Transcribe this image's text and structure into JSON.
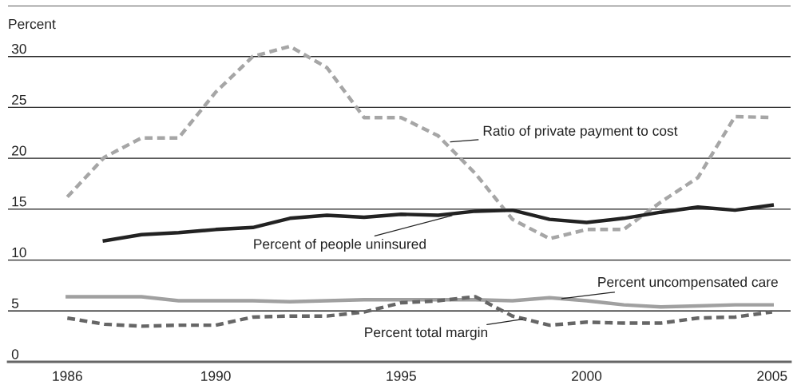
{
  "chart_data": {
    "type": "line",
    "ylabel": "Percent",
    "x": [
      1986,
      1987,
      1988,
      1989,
      1990,
      1991,
      1992,
      1993,
      1994,
      1995,
      1996,
      1997,
      1998,
      1999,
      2000,
      2001,
      2002,
      2003,
      2004,
      2005
    ],
    "xlim": [
      1984.4,
      2005.5
    ],
    "xticks": [
      1986,
      1990,
      1995,
      2000,
      2005
    ],
    "ylim": [
      0,
      35
    ],
    "yticks": [
      0,
      5,
      10,
      15,
      20,
      25,
      30,
      {
        "value": 35,
        "label": null
      }
    ],
    "grid": "y",
    "legend": false,
    "marker": "none",
    "series": [
      {
        "color": "#a6a6a6",
        "line_style": "dashed",
        "values": [
          16.2,
          20.1,
          22.0,
          22.0,
          26.5,
          30.0,
          31.0,
          28.9,
          24.0,
          24.0,
          22.2,
          18.5,
          14.0,
          12.1,
          13.0,
          13.0,
          15.7,
          18.1,
          24.1,
          24.0
        ]
      },
      {
        "color": "#222222",
        "line_style": "solid",
        "values": [
          null,
          11.9,
          12.5,
          12.7,
          13.0,
          13.2,
          14.1,
          14.4,
          14.2,
          14.5,
          14.4,
          14.8,
          14.9,
          14.0,
          13.7,
          14.1,
          14.7,
          15.2,
          14.9,
          15.4
        ]
      },
      {
        "color": "#a0a0a0",
        "line_style": "solid",
        "values": [
          6.4,
          6.4,
          6.4,
          6.0,
          6.0,
          6.0,
          5.9,
          6.0,
          6.1,
          6.1,
          6.1,
          6.1,
          6.0,
          6.3,
          6.0,
          5.6,
          5.4,
          5.5,
          5.6,
          5.6
        ]
      },
      {
        "color": "#666666",
        "line_style": "dashed",
        "values": [
          4.3,
          3.7,
          3.5,
          3.6,
          3.6,
          4.4,
          4.5,
          4.5,
          4.9,
          5.8,
          6.0,
          6.4,
          4.5,
          3.6,
          3.9,
          3.8,
          3.8,
          4.3,
          4.4,
          4.9
        ]
      }
    ],
    "annotations": [
      {
        "text": "Ratio of private payment to cost",
        "x": 1996.3,
        "y": 21.6
      },
      {
        "text": "Percent of people uninsured",
        "x": 1996.4,
        "y": 14.4
      },
      {
        "text": "Percent uncompensated care",
        "x": 1999.3,
        "y": 6.2
      },
      {
        "text": "Percent total margin",
        "x": 1998.3,
        "y": 4.2
      }
    ]
  }
}
